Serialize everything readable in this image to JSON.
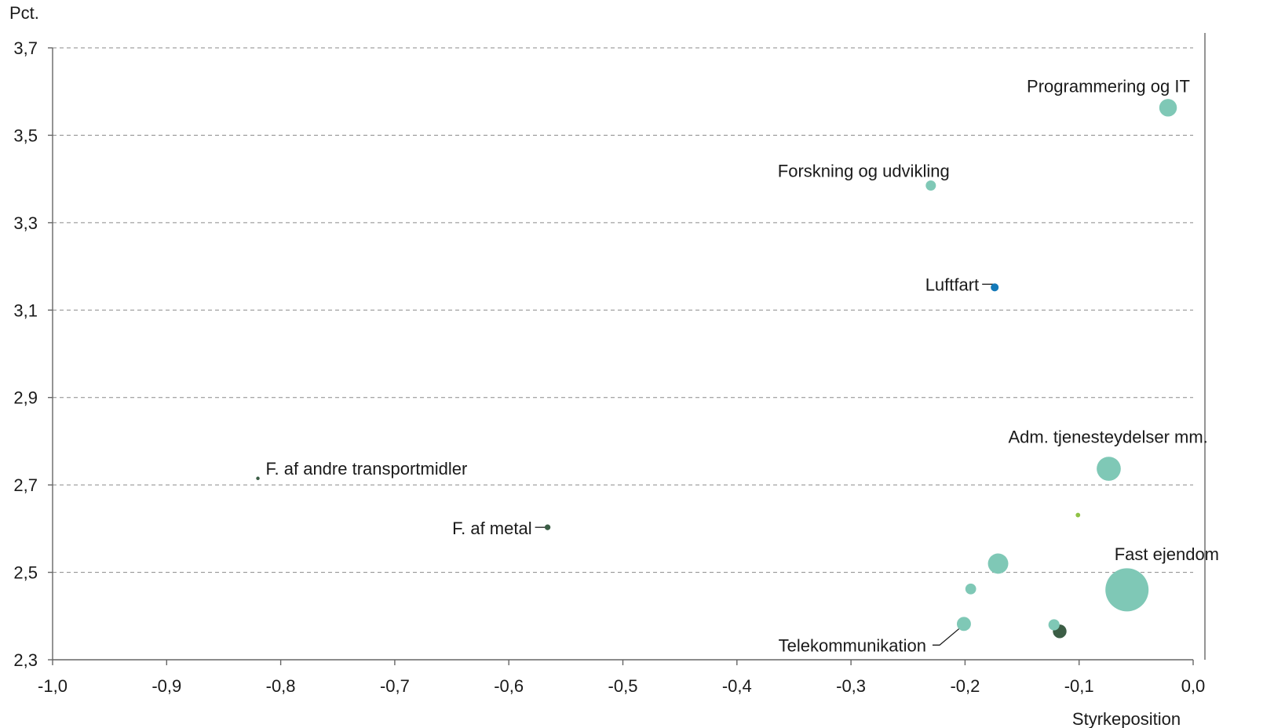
{
  "chart_data": {
    "type": "scatter",
    "variant": "bubble",
    "ylabel": "Pct.",
    "xlabel": "Styrkeposition",
    "xlim": [
      -1.0,
      0.0
    ],
    "ylim": [
      2.3,
      3.7
    ],
    "x_ticks": [
      -1.0,
      -0.9,
      -0.8,
      -0.7,
      -0.6,
      -0.5,
      -0.4,
      -0.3,
      -0.2,
      -0.1,
      0.0
    ],
    "x_tick_labels": [
      "-1,0",
      "-0,9",
      "-0,8",
      "-0,7",
      "-0,6",
      "-0,5",
      "-0,4",
      "-0,3",
      "-0,2",
      "-0,1",
      "0,0"
    ],
    "y_ticks": [
      2.3,
      2.5,
      2.7,
      2.9,
      3.1,
      3.3,
      3.5,
      3.7
    ],
    "y_tick_labels": [
      "2,3",
      "2,5",
      "2,7",
      "2,9",
      "3,1",
      "3,3",
      "3,5",
      "3,7"
    ],
    "grid": "horizontal dashed",
    "colors": {
      "teal": "#7fc8b6",
      "dark_green": "#3b5d45",
      "blue": "#1479b8",
      "lime": "#8fc246"
    },
    "points": [
      {
        "label": "Programmering og IT",
        "x": -0.022,
        "y": 3.563,
        "size": 7.5,
        "color": "teal"
      },
      {
        "label": "Forskning og udvikling",
        "x": -0.23,
        "y": 3.385,
        "size": 2.5,
        "color": "teal"
      },
      {
        "label": "Luftfart",
        "x": -0.174,
        "y": 3.152,
        "size": 1.5,
        "color": "blue"
      },
      {
        "label": "Adm. tjenesteydelser mm.",
        "x": -0.074,
        "y": 2.737,
        "size": 14,
        "color": "teal"
      },
      {
        "label": "F. af andre transportmidler",
        "x": -0.82,
        "y": 2.715,
        "size": 0.3,
        "color": "dark_green"
      },
      {
        "label": "F. af metal",
        "x": -0.566,
        "y": 2.603,
        "size": 0.8,
        "color": "dark_green"
      },
      {
        "label": "",
        "x": -0.101,
        "y": 2.631,
        "size": 0.5,
        "color": "lime"
      },
      {
        "label": "",
        "x": -0.171,
        "y": 2.52,
        "size": 10,
        "color": "teal"
      },
      {
        "label": "Fast ejendom",
        "x": -0.058,
        "y": 2.46,
        "size": 45,
        "color": "teal"
      },
      {
        "label": "",
        "x": -0.195,
        "y": 2.462,
        "size": 2.8,
        "color": "teal"
      },
      {
        "label": "Telekommunikation",
        "x": -0.201,
        "y": 2.382,
        "size": 4.8,
        "color": "teal"
      },
      {
        "label": "",
        "x": -0.122,
        "y": 2.38,
        "size": 3,
        "color": "teal"
      },
      {
        "label": "",
        "x": -0.117,
        "y": 2.365,
        "size": 4.5,
        "color": "dark_green"
      }
    ]
  }
}
